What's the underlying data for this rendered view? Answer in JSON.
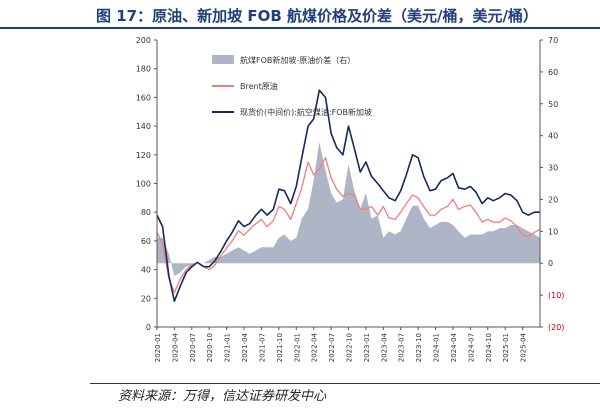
{
  "title": "图 17：原油、新加坡 FOB 航煤价格及价差（美元/桶，美元/桶）",
  "source": "资料来源：万得，信达证券研发中心",
  "chart_data": {
    "type": "line",
    "left_axis": {
      "min": 0,
      "max": 200,
      "ticks": [
        "0",
        "20",
        "40",
        "60",
        "80",
        "100",
        "120",
        "140",
        "160",
        "180",
        "200"
      ]
    },
    "right_axis": {
      "min": -20,
      "max": 70,
      "ticks": [
        {
          "v": -20,
          "label": "(20)"
        },
        {
          "v": -10,
          "label": "(10)"
        },
        {
          "v": 0,
          "label": "0"
        },
        {
          "v": 10,
          "label": "10"
        },
        {
          "v": 20,
          "label": "20"
        },
        {
          "v": 30,
          "label": "30"
        },
        {
          "v": 40,
          "label": "40"
        },
        {
          "v": 50,
          "label": "50"
        },
        {
          "v": 60,
          "label": "60"
        },
        {
          "v": 70,
          "label": "70"
        }
      ]
    },
    "x_labels": [
      "2020-01",
      "2020-04",
      "2020-07",
      "2020-10",
      "2021-01",
      "2021-04",
      "2021-07",
      "2021-10",
      "2022-01",
      "2022-04",
      "2022-07",
      "2022-10",
      "2023-01",
      "2023-04",
      "2023-07",
      "2023-10",
      "2024-01",
      "2024-04",
      "2024-07",
      "2024-10",
      "2025-01",
      "2025-04"
    ],
    "legend": [
      {
        "name": "航煤FOB新加坡-原油价差（右）",
        "color": "#aeb5c6",
        "kind": "area"
      },
      {
        "name": "Brent原油",
        "color": "#f47c7c",
        "kind": "line"
      },
      {
        "name": "现货价(中间价):航空煤油:FOB新加坡",
        "color": "#14295e",
        "kind": "line"
      }
    ],
    "x": [
      2020.0,
      2020.08,
      2020.17,
      2020.25,
      2020.33,
      2020.42,
      2020.5,
      2020.58,
      2020.67,
      2020.75,
      2020.83,
      2020.92,
      2021.0,
      2021.08,
      2021.17,
      2021.25,
      2021.33,
      2021.42,
      2021.5,
      2021.58,
      2021.67,
      2021.75,
      2021.83,
      2021.92,
      2022.0,
      2022.08,
      2022.17,
      2022.25,
      2022.33,
      2022.42,
      2022.5,
      2022.58,
      2022.67,
      2022.75,
      2022.83,
      2022.92,
      2023.0,
      2023.08,
      2023.17,
      2023.25,
      2023.33,
      2023.42,
      2023.5,
      2023.58,
      2023.67,
      2023.75,
      2023.83,
      2023.92,
      2024.0,
      2024.08,
      2024.17,
      2024.25,
      2024.33,
      2024.42,
      2024.5,
      2024.58,
      2024.67,
      2024.75,
      2024.83,
      2024.92,
      2025.0,
      2025.08,
      2025.17,
      2025.25,
      2025.33,
      2025.42,
      2025.5
    ],
    "series": [
      {
        "name": "Brent原油",
        "values": [
          66,
          58,
          34,
          24,
          33,
          40,
          43,
          45,
          42,
          40,
          43,
          50,
          55,
          60,
          67,
          64,
          68,
          72,
          75,
          70,
          74,
          84,
          82,
          75,
          86,
          97,
          115,
          106,
          110,
          118,
          104,
          96,
          91,
          93,
          92,
          82,
          82,
          84,
          78,
          84,
          76,
          75,
          80,
          86,
          92,
          90,
          84,
          78,
          78,
          82,
          84,
          89,
          82,
          84,
          85,
          80,
          73,
          75,
          73,
          73,
          76,
          74,
          70,
          64,
          63,
          66,
          68
        ]
      },
      {
        "name": "现货价(中间价):航空煤油:FOB新加坡",
        "values": [
          78,
          70,
          36,
          18,
          28,
          38,
          42,
          45,
          42,
          42,
          46,
          53,
          60,
          66,
          74,
          70,
          72,
          78,
          82,
          78,
          82,
          96,
          95,
          86,
          98,
          118,
          140,
          145,
          165,
          160,
          135,
          125,
          120,
          140,
          125,
          108,
          115,
          105,
          100,
          95,
          90,
          88,
          95,
          106,
          120,
          118,
          105,
          95,
          96,
          102,
          104,
          107,
          97,
          96,
          98,
          94,
          86,
          90,
          88,
          90,
          93,
          92,
          88,
          80,
          78,
          80,
          80
        ]
      },
      {
        "name": "航煤FOB新加坡-原油价差（右）",
        "values": [
          8,
          8,
          3,
          -4,
          -3,
          -1,
          -1,
          0,
          0,
          1,
          2,
          2,
          3,
          4,
          5,
          4,
          3,
          4,
          5,
          5,
          5,
          8,
          9,
          7,
          8,
          14,
          17,
          26,
          38,
          29,
          22,
          19,
          20,
          31,
          23,
          17,
          22,
          14,
          15,
          8,
          10,
          9,
          10,
          14,
          18,
          18,
          14,
          11,
          12,
          13,
          13,
          12,
          10,
          8,
          9,
          9,
          9,
          10,
          10,
          11,
          11,
          12,
          12,
          11,
          10,
          9,
          8
        ]
      }
    ]
  }
}
